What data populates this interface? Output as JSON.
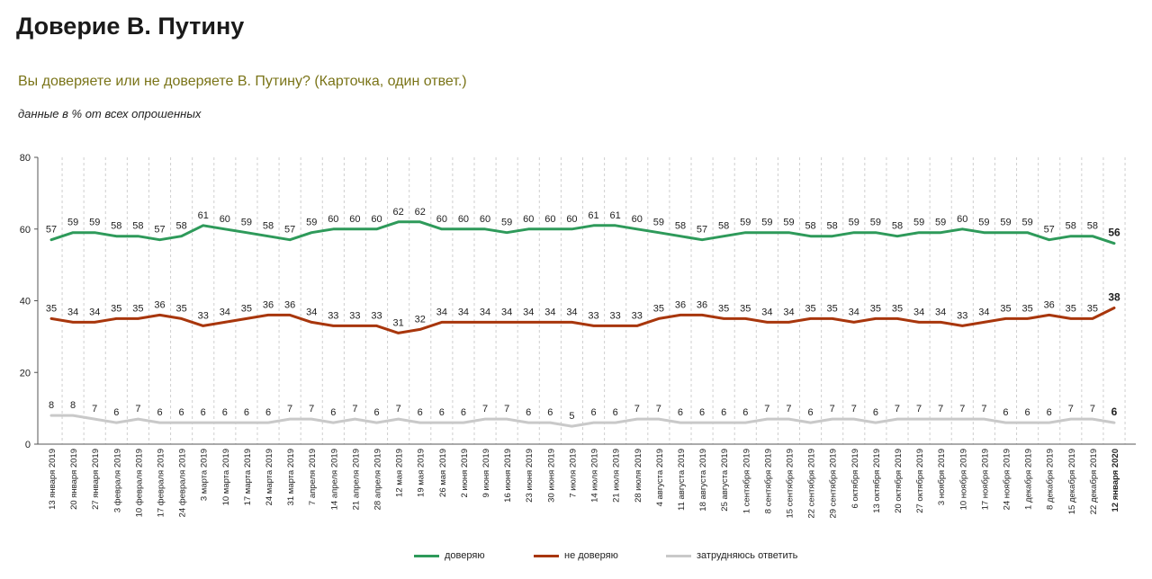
{
  "header": {
    "title": "Доверие В. Путину",
    "question": "Вы доверяете или не доверяете В. Путину? (Карточка, один ответ.)",
    "note": "данные в % от всех опрошенных"
  },
  "colors": {
    "trust": "#2e9a5a",
    "distrust": "#a8360c",
    "hard": "#c9c9c9"
  },
  "chart_data": {
    "type": "line",
    "ylim": [
      0,
      80
    ],
    "yticks": [
      0,
      20,
      40,
      60,
      80
    ],
    "grid": "vertical dashed",
    "legend_placement": "bottom",
    "categories": [
      "13 января 2019",
      "20 января 2019",
      "27 января 2019",
      "3 февраля 2019",
      "10 февраля 2019",
      "17 февраля 2019",
      "24 февраля 2019",
      "3 марта 2019",
      "10 марта 2019",
      "17 марта 2019",
      "24 марта 2019",
      "31 марта 2019",
      "7 апреля 2019",
      "14 апреля 2019",
      "21 апреля 2019",
      "28 апреля 2019",
      "12 мая 2019",
      "19 мая 2019",
      "26 мая 2019",
      "2 июня 2019",
      "9 июня 2019",
      "16 июня 2019",
      "23 июня 2019",
      "30 июня 2019",
      "7 июля 2019",
      "14 июля 2019",
      "21 июля 2019",
      "28 июля 2019",
      "4 августа 2019",
      "11 августа 2019",
      "18 августа 2019",
      "25 августа 2019",
      "1 сентября 2019",
      "8 сентября 2019",
      "15 сентября 2019",
      "22 сентября 2019",
      "29 сентября 2019",
      "6 октября 2019",
      "13 октября 2019",
      "20 октября 2019",
      "27 октября 2019",
      "3 ноября 2019",
      "10 ноября 2019",
      "17 ноября 2019",
      "24 ноября 2019",
      "1 декабря 2019",
      "8 декабря 2019",
      "15 декабря 2019",
      "22 декабря 2019",
      "12 января 2020"
    ],
    "series": [
      {
        "name": "доверяю",
        "key": "trust",
        "values": [
          57,
          59,
          59,
          58,
          58,
          57,
          58,
          61,
          60,
          59,
          58,
          57,
          59,
          60,
          60,
          60,
          62,
          62,
          60,
          60,
          60,
          59,
          60,
          60,
          60,
          61,
          61,
          60,
          59,
          58,
          57,
          58,
          59,
          59,
          59,
          58,
          58,
          59,
          59,
          58,
          59,
          59,
          60,
          59,
          59,
          59,
          57,
          58,
          58,
          56
        ]
      },
      {
        "name": "не доверяю",
        "key": "distrust",
        "values": [
          35,
          34,
          34,
          35,
          35,
          36,
          35,
          33,
          34,
          35,
          36,
          36,
          34,
          33,
          33,
          33,
          31,
          32,
          34,
          34,
          34,
          34,
          34,
          34,
          34,
          33,
          33,
          33,
          35,
          36,
          36,
          35,
          35,
          34,
          34,
          35,
          35,
          34,
          35,
          35,
          34,
          34,
          33,
          34,
          35,
          35,
          36,
          35,
          35,
          38
        ]
      },
      {
        "name": "затрудняюсь ответить",
        "key": "hard",
        "values": [
          8,
          8,
          7,
          6,
          7,
          6,
          6,
          6,
          6,
          6,
          6,
          7,
          7,
          6,
          7,
          6,
          7,
          6,
          6,
          6,
          7,
          7,
          6,
          6,
          5,
          6,
          6,
          7,
          7,
          6,
          6,
          6,
          6,
          7,
          7,
          6,
          7,
          7,
          6,
          7,
          7,
          7,
          7,
          7,
          6,
          6,
          6,
          7,
          7,
          6
        ]
      }
    ]
  }
}
